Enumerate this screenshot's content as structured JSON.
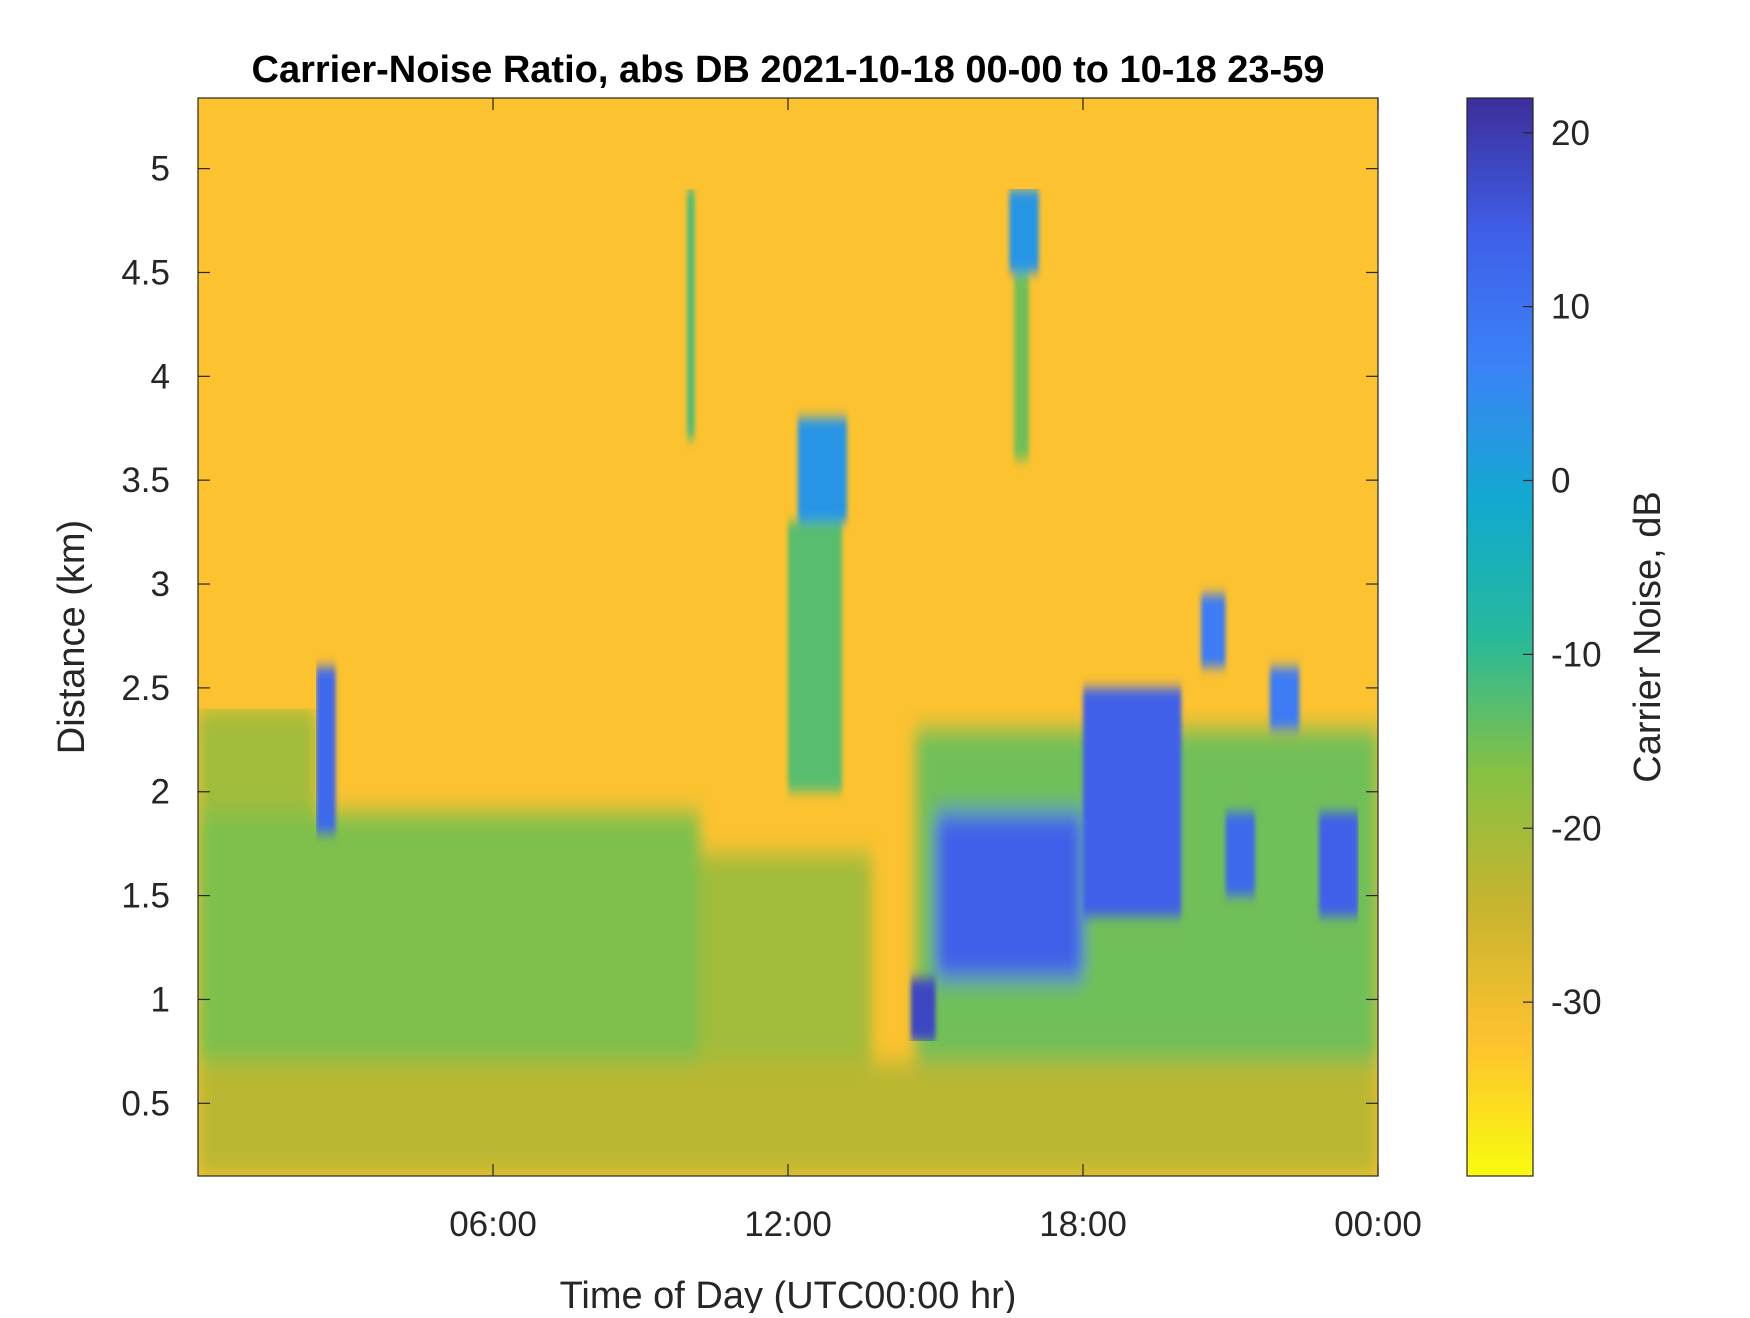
{
  "chart_data": {
    "type": "heatmap",
    "title": "Carrier-Noise Ratio, abs DB 2021-10-18 00-00 to 10-18 23-59",
    "xlabel": "Time of Day (UTC00:00 hr)",
    "ylabel": "Distance (km)",
    "x_ticks": [
      {
        "value": 6,
        "label": "06:00"
      },
      {
        "value": 12,
        "label": "12:00"
      },
      {
        "value": 18,
        "label": "18:00"
      },
      {
        "value": 24,
        "label": "00:00"
      }
    ],
    "y_ticks": [
      {
        "value": 0.5,
        "label": "0.5"
      },
      {
        "value": 1,
        "label": "1"
      },
      {
        "value": 1.5,
        "label": "1.5"
      },
      {
        "value": 2,
        "label": "2"
      },
      {
        "value": 2.5,
        "label": "2.5"
      },
      {
        "value": 3,
        "label": "3"
      },
      {
        "value": 3.5,
        "label": "3.5"
      },
      {
        "value": 4,
        "label": "4"
      },
      {
        "value": 4.5,
        "label": "4.5"
      },
      {
        "value": 5,
        "label": "5"
      }
    ],
    "xlim": [
      0,
      24
    ],
    "ylim": [
      0.15,
      5.34
    ],
    "colorbar": {
      "label": "Carrier Noise, dB",
      "range": [
        -40,
        22
      ],
      "ticks": [
        {
          "value": 20,
          "label": "20"
        },
        {
          "value": 10,
          "label": "10"
        },
        {
          "value": 0,
          "label": "0"
        },
        {
          "value": -10,
          "label": "-10"
        },
        {
          "value": -20,
          "label": "-20"
        },
        {
          "value": -30,
          "label": "-30"
        }
      ],
      "colormap": "parula (reversed: yellow low, blue high)",
      "colors": [
        "#f9fb0e",
        "#fec22f",
        "#c7b42f",
        "#86c144",
        "#27b99b",
        "#11aacf",
        "#3b83f7",
        "#3f5fe9",
        "#3d2e9b"
      ]
    },
    "background_value_db": -32,
    "regions": [
      {
        "name": "near-surface layer",
        "x_range": [
          0,
          24
        ],
        "y_range": [
          0.15,
          0.7
        ],
        "value_db": -23
      },
      {
        "name": "morning boundary layer",
        "x_range": [
          0,
          10.2
        ],
        "y_range": [
          0.7,
          1.9
        ],
        "value_db": -16
      },
      {
        "name": "early boundary layer top",
        "x_range": [
          0,
          2.4
        ],
        "y_range": [
          1.9,
          2.4
        ],
        "value_db": -20
      },
      {
        "name": "midday residual layer",
        "x_range": [
          10.2,
          13.7
        ],
        "y_range": [
          0.7,
          1.7
        ],
        "value_db": -20
      },
      {
        "name": "afternoon convective layer",
        "x_range": [
          14.6,
          24
        ],
        "y_range": [
          0.7,
          2.3
        ],
        "value_db": -15
      },
      {
        "name": "cloud near 02:45",
        "x_range": [
          2.4,
          2.8
        ],
        "y_range": [
          1.8,
          2.6
        ],
        "value_db": 12
      },
      {
        "name": "cloud near 12:40",
        "x_range": [
          12.2,
          13.2
        ],
        "y_range": [
          3.3,
          3.8
        ],
        "value_db": 3
      },
      {
        "name": "virga near 12:40",
        "x_range": [
          12,
          13.1
        ],
        "y_range": [
          2.0,
          3.3
        ],
        "value_db": -13
      },
      {
        "name": "streak near 10:00",
        "x_range": [
          9.95,
          10.1
        ],
        "y_range": [
          3.7,
          4.9
        ],
        "value_db": -12
      },
      {
        "name": "cloud near 16:50",
        "x_range": [
          16.5,
          17.1
        ],
        "y_range": [
          4.5,
          4.9
        ],
        "value_db": 3
      },
      {
        "name": "virga near 16:50",
        "x_range": [
          16.6,
          16.9
        ],
        "y_range": [
          3.6,
          4.5
        ],
        "value_db": -15
      },
      {
        "name": "cloud near 14:40",
        "x_range": [
          14.5,
          15.0
        ],
        "y_range": [
          0.8,
          1.1
        ],
        "value_db": 18
      },
      {
        "name": "cloud layer 15:00-18:00",
        "x_range": [
          15.0,
          18.0
        ],
        "y_range": [
          1.1,
          1.9
        ],
        "value_db": 14
      },
      {
        "name": "cloud layer 18:00-20:00",
        "x_range": [
          18.0,
          20.0
        ],
        "y_range": [
          1.4,
          2.5
        ],
        "value_db": 14
      },
      {
        "name": "cloud near 20:30",
        "x_range": [
          20.4,
          20.9
        ],
        "y_range": [
          2.6,
          2.95
        ],
        "value_db": 8
      },
      {
        "name": "cloud near 21:00",
        "x_range": [
          20.9,
          21.5
        ],
        "y_range": [
          1.5,
          1.9
        ],
        "value_db": 12
      },
      {
        "name": "cloud near 21:50",
        "x_range": [
          21.8,
          22.4
        ],
        "y_range": [
          2.3,
          2.6
        ],
        "value_db": 8
      },
      {
        "name": "cloud near 23:10",
        "x_range": [
          22.8,
          23.6
        ],
        "y_range": [
          1.4,
          1.9
        ],
        "value_db": 14
      }
    ]
  }
}
